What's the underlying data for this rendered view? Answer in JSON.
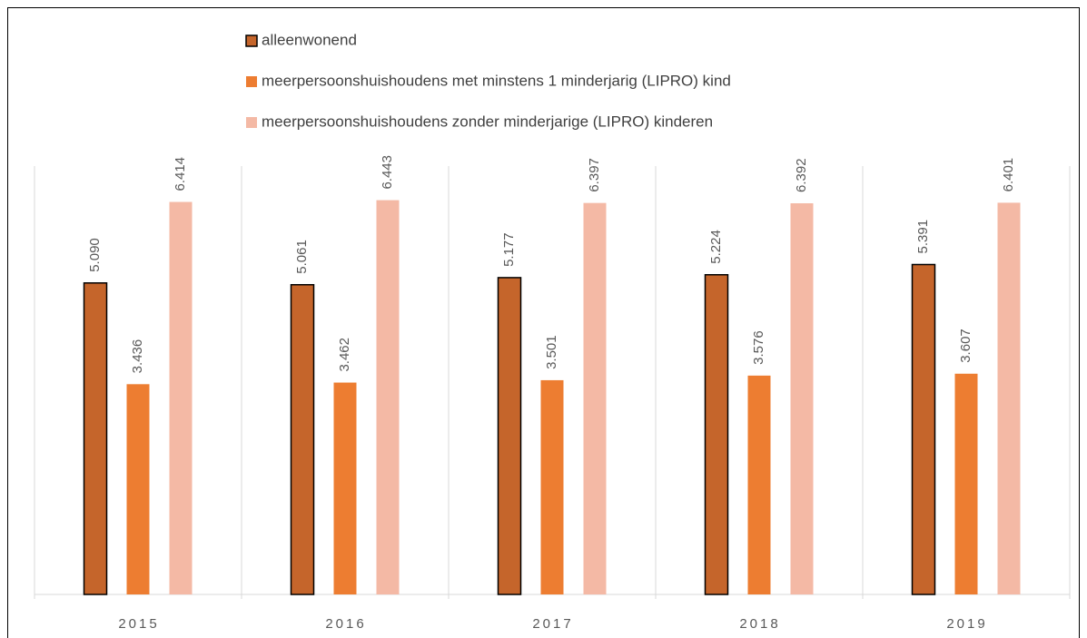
{
  "chart_data": {
    "type": "bar",
    "categories": [
      "2015",
      "2016",
      "2017",
      "2018",
      "2019"
    ],
    "series": [
      {
        "name": "alleenwonend",
        "color": "#c5652b",
        "values": [
          5090,
          5061,
          5177,
          5224,
          5391
        ],
        "value_labels": [
          "5.090",
          "5.061",
          "5.177",
          "5.224",
          "5.391"
        ]
      },
      {
        "name": "meerpersoonshuishoudens met minstens 1 minderjarig (LIPRO) kind",
        "color": "#ed7d31",
        "values": [
          3436,
          3462,
          3501,
          3576,
          3607
        ],
        "value_labels": [
          "3.436",
          "3.462",
          "3.501",
          "3.576",
          "3.607"
        ]
      },
      {
        "name": "meerpersoonshuishoudens zonder minderjarige (LIPRO) kinderen",
        "color": "#f4b9a5",
        "values": [
          6414,
          6443,
          6397,
          6392,
          6401
        ],
        "value_labels": [
          "6.414",
          "6.443",
          "6.397",
          "6.392",
          "6.401"
        ]
      }
    ],
    "ylim": [
      0,
      7000
    ],
    "legend": "top"
  }
}
